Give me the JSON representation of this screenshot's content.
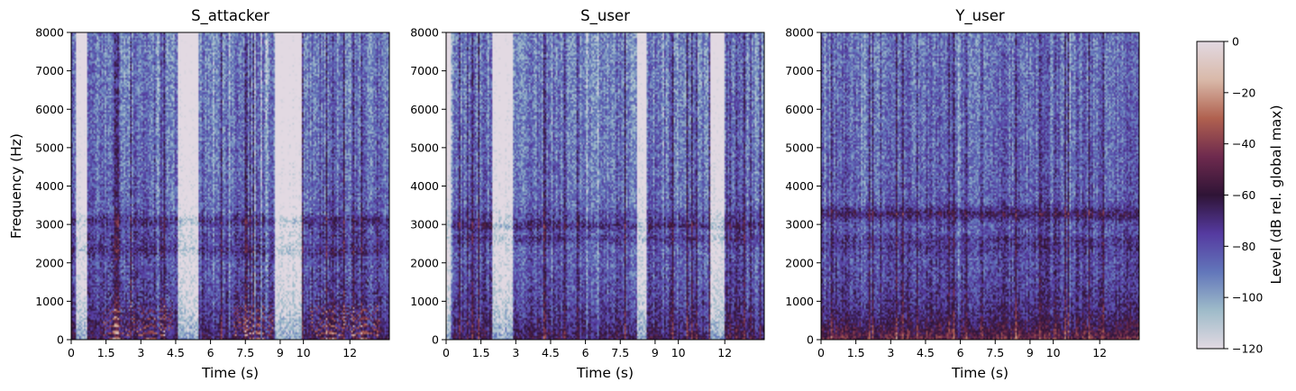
{
  "chart_data": [
    {
      "type": "heatmap",
      "title": "S_attacker",
      "xlabel": "Time (s)",
      "ylabel": "Frequency (Hz)",
      "xlim": [
        0,
        13.7
      ],
      "ylim": [
        0,
        8000
      ],
      "xticks": [
        0,
        1.5,
        3,
        4.5,
        6,
        7.5,
        9,
        10,
        12
      ],
      "xtick_labels": [
        "0",
        "1.5",
        "3",
        "4.5",
        "6",
        "7.5",
        "9",
        "10",
        "12"
      ],
      "yticks": [
        0,
        1000,
        2000,
        3000,
        4000,
        5000,
        6000,
        7000,
        8000
      ],
      "ytick_labels": [
        "0",
        "1000",
        "2000",
        "3000",
        "4000",
        "5000",
        "6000",
        "7000",
        "8000"
      ],
      "silent_gaps_s": [
        [
          0.2,
          0.7
        ],
        [
          4.6,
          5.5
        ],
        [
          8.8,
          9.9
        ]
      ],
      "harmonic_speech_s": [
        [
          1.4,
          4.4
        ],
        [
          7.0,
          8.7
        ],
        [
          10.3,
          13.3
        ]
      ],
      "colormap": "twilight"
    },
    {
      "type": "heatmap",
      "title": "S_user",
      "xlabel": "Time (s)",
      "ylabel": "",
      "xlim": [
        0,
        13.7
      ],
      "ylim": [
        0,
        8000
      ],
      "xticks": [
        0,
        1.5,
        3,
        4.5,
        6,
        7.5,
        9,
        10,
        12
      ],
      "xtick_labels": [
        "0",
        "1.5",
        "3",
        "4.5",
        "6",
        "7.5",
        "9",
        "10",
        "12"
      ],
      "yticks": [
        0,
        1000,
        2000,
        3000,
        4000,
        5000,
        6000,
        7000,
        8000
      ],
      "ytick_labels": [
        "0",
        "1000",
        "2000",
        "3000",
        "4000",
        "5000",
        "6000",
        "7000",
        "8000"
      ],
      "silent_gaps_s": [
        [
          0,
          0.2
        ],
        [
          2.0,
          2.9
        ],
        [
          8.2,
          8.6
        ],
        [
          11.4,
          12.0
        ]
      ],
      "harmonic_speech_s": [],
      "colormap": "twilight"
    },
    {
      "type": "heatmap",
      "title": "Y_user",
      "xlabel": "Time (s)",
      "ylabel": "",
      "xlim": [
        0,
        13.7
      ],
      "ylim": [
        0,
        8000
      ],
      "xticks": [
        0,
        1.5,
        3,
        4.5,
        6,
        7.5,
        9,
        10,
        12
      ],
      "xtick_labels": [
        "0",
        "1.5",
        "3",
        "4.5",
        "6",
        "7.5",
        "9",
        "10",
        "12"
      ],
      "yticks": [
        0,
        1000,
        2000,
        3000,
        4000,
        5000,
        6000,
        7000,
        8000
      ],
      "ytick_labels": [
        "0",
        "1000",
        "2000",
        "3000",
        "4000",
        "5000",
        "6000",
        "7000",
        "8000"
      ],
      "silent_gaps_s": [],
      "harmonic_speech_s": [],
      "colormap": "twilight"
    }
  ],
  "colorbar": {
    "label": "Level (dB rel. global max)",
    "range": [
      -120,
      0
    ],
    "ticks": [
      0,
      -20,
      -40,
      -60,
      -80,
      -100,
      -120
    ],
    "tick_labels": [
      "0",
      "−20",
      "−40",
      "−60",
      "−80",
      "−100",
      "−120"
    ],
    "colormap": "twilight",
    "colors": [
      "#e2d9e2",
      "#9ebbc9",
      "#6276ba",
      "#553aa0",
      "#2f1436",
      "#6e2a4e",
      "#b0614f",
      "#d9b9a9",
      "#e2d9e2"
    ]
  }
}
